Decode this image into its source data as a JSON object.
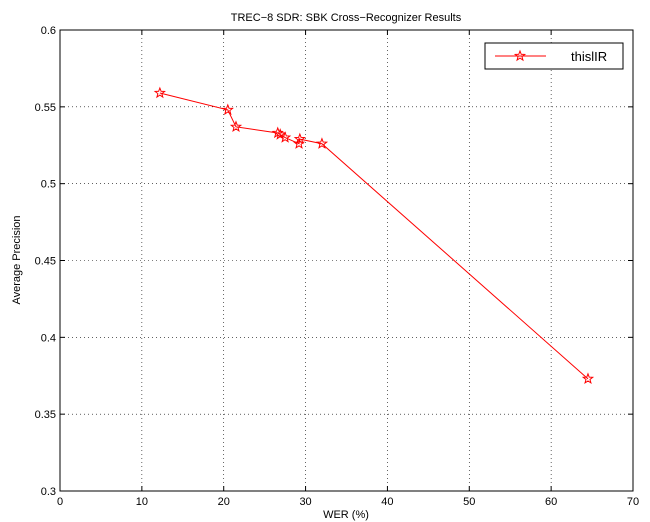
{
  "chart_data": {
    "type": "line",
    "title": "TREC−8 SDR: SBK Cross−Recognizer Results",
    "xlabel": "WER (%)",
    "ylabel": "Average Precision",
    "xlim": [
      0,
      70
    ],
    "ylim": [
      0.3,
      0.6
    ],
    "xticks": [
      0,
      10,
      20,
      30,
      40,
      50,
      60,
      70
    ],
    "yticks": [
      0.3,
      0.35,
      0.4,
      0.45,
      0.5,
      0.55,
      0.6
    ],
    "ytick_labels": [
      "0.3",
      "0.35",
      "0.4",
      "0.45",
      "0.5",
      "0.55",
      "0.6"
    ],
    "grid": true,
    "legend_position": "top-right",
    "series": [
      {
        "name": "thislIR",
        "color": "#ff0000",
        "marker": "star",
        "x": [
          12.2,
          20.5,
          21.5,
          26.6,
          26.9,
          27.5,
          29.2,
          29.3,
          32.0,
          64.5
        ],
        "y": [
          0.559,
          0.548,
          0.537,
          0.533,
          0.532,
          0.53,
          0.526,
          0.529,
          0.526,
          0.373
        ]
      }
    ]
  }
}
